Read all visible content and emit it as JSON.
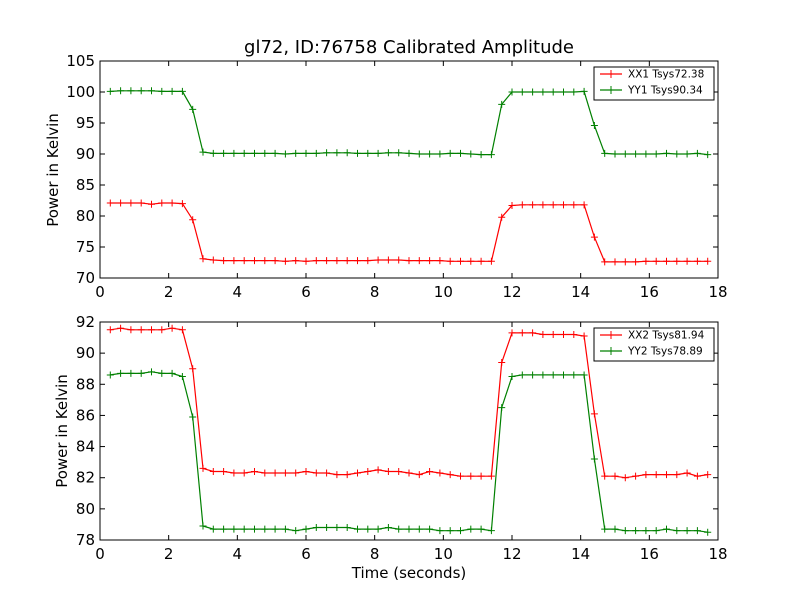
{
  "chart_data": [
    {
      "type": "line",
      "title": "gl72, ID:76758 Calibrated Amplitude",
      "xlabel": "",
      "ylabel": "Power in Kelvin",
      "xlim": [
        0,
        18
      ],
      "ylim": [
        70,
        105
      ],
      "xticks": [
        "0",
        "2",
        "4",
        "6",
        "8",
        "10",
        "12",
        "14",
        "16",
        "18"
      ],
      "yticks": [
        "70",
        "75",
        "80",
        "85",
        "90",
        "95",
        "100",
        "105"
      ],
      "grid": false,
      "legend_position": "top-right",
      "series": [
        {
          "name": "XX1 Tsys72.38",
          "color": "#ff0000",
          "x": [
            0.3,
            0.6,
            0.9,
            1.2,
            1.5,
            1.8,
            2.1,
            2.4,
            2.7,
            3.0,
            3.3,
            3.6,
            3.9,
            4.2,
            4.5,
            4.8,
            5.1,
            5.4,
            5.7,
            6.0,
            6.3,
            6.6,
            6.9,
            7.2,
            7.5,
            7.8,
            8.1,
            8.4,
            8.7,
            9.0,
            9.3,
            9.6,
            9.9,
            10.2,
            10.5,
            10.8,
            11.1,
            11.4,
            11.7,
            12.0,
            12.3,
            12.6,
            12.9,
            13.2,
            13.5,
            13.8,
            14.1,
            14.4,
            14.7,
            15.0,
            15.3,
            15.6,
            15.9,
            16.2,
            16.5,
            16.8,
            17.1,
            17.4,
            17.7
          ],
          "values": [
            82.1,
            82.1,
            82.1,
            82.1,
            81.9,
            82.1,
            82.1,
            82.0,
            79.4,
            73.1,
            72.9,
            72.8,
            72.8,
            72.8,
            72.8,
            72.8,
            72.8,
            72.7,
            72.8,
            72.7,
            72.8,
            72.8,
            72.8,
            72.8,
            72.8,
            72.8,
            72.9,
            72.9,
            72.9,
            72.8,
            72.8,
            72.8,
            72.8,
            72.7,
            72.7,
            72.7,
            72.7,
            72.7,
            79.8,
            81.7,
            81.8,
            81.8,
            81.8,
            81.8,
            81.8,
            81.8,
            81.8,
            76.6,
            72.6,
            72.6,
            72.6,
            72.6,
            72.7,
            72.7,
            72.7,
            72.7,
            72.7,
            72.7,
            72.7
          ]
        },
        {
          "name": "YY1 Tsys90.34",
          "color": "#008000",
          "x": [
            0.3,
            0.6,
            0.9,
            1.2,
            1.5,
            1.8,
            2.1,
            2.4,
            2.7,
            3.0,
            3.3,
            3.6,
            3.9,
            4.2,
            4.5,
            4.8,
            5.1,
            5.4,
            5.7,
            6.0,
            6.3,
            6.6,
            6.9,
            7.2,
            7.5,
            7.8,
            8.1,
            8.4,
            8.7,
            9.0,
            9.3,
            9.6,
            9.9,
            10.2,
            10.5,
            10.8,
            11.1,
            11.4,
            11.7,
            12.0,
            12.3,
            12.6,
            12.9,
            13.2,
            13.5,
            13.8,
            14.1,
            14.4,
            14.7,
            15.0,
            15.3,
            15.6,
            15.9,
            16.2,
            16.5,
            16.8,
            17.1,
            17.4,
            17.7
          ],
          "values": [
            100.1,
            100.2,
            100.2,
            100.2,
            100.2,
            100.1,
            100.1,
            100.1,
            97.2,
            90.3,
            90.1,
            90.1,
            90.1,
            90.1,
            90.1,
            90.1,
            90.1,
            90.0,
            90.1,
            90.1,
            90.1,
            90.2,
            90.2,
            90.2,
            90.1,
            90.1,
            90.1,
            90.2,
            90.2,
            90.1,
            90.0,
            90.0,
            90.0,
            90.1,
            90.1,
            90.0,
            89.9,
            89.9,
            98.0,
            100.0,
            100.0,
            100.0,
            100.0,
            100.0,
            100.0,
            100.0,
            100.1,
            94.6,
            90.1,
            90.0,
            90.0,
            90.0,
            90.0,
            90.0,
            90.1,
            90.0,
            90.0,
            90.1,
            89.9
          ]
        }
      ]
    },
    {
      "type": "line",
      "title": "",
      "xlabel": "Time (seconds)",
      "ylabel": "Power in Kelvin",
      "xlim": [
        0,
        18
      ],
      "ylim": [
        78,
        92
      ],
      "xticks": [
        "0",
        "2",
        "4",
        "6",
        "8",
        "10",
        "12",
        "14",
        "16",
        "18"
      ],
      "yticks": [
        "78",
        "80",
        "82",
        "84",
        "86",
        "88",
        "90",
        "92"
      ],
      "grid": false,
      "legend_position": "top-right",
      "series": [
        {
          "name": "XX2 Tsys81.94",
          "color": "#ff0000",
          "x": [
            0.3,
            0.6,
            0.9,
            1.2,
            1.5,
            1.8,
            2.1,
            2.4,
            2.7,
            3.0,
            3.3,
            3.6,
            3.9,
            4.2,
            4.5,
            4.8,
            5.1,
            5.4,
            5.7,
            6.0,
            6.3,
            6.6,
            6.9,
            7.2,
            7.5,
            7.8,
            8.1,
            8.4,
            8.7,
            9.0,
            9.3,
            9.6,
            9.9,
            10.2,
            10.5,
            10.8,
            11.1,
            11.4,
            11.7,
            12.0,
            12.3,
            12.6,
            12.9,
            13.2,
            13.5,
            13.8,
            14.1,
            14.4,
            14.7,
            15.0,
            15.3,
            15.6,
            15.9,
            16.2,
            16.5,
            16.8,
            17.1,
            17.4,
            17.7
          ],
          "values": [
            91.5,
            91.6,
            91.5,
            91.5,
            91.5,
            91.5,
            91.6,
            91.5,
            89.0,
            82.6,
            82.4,
            82.4,
            82.3,
            82.3,
            82.4,
            82.3,
            82.3,
            82.3,
            82.3,
            82.4,
            82.3,
            82.3,
            82.2,
            82.2,
            82.3,
            82.4,
            82.5,
            82.4,
            82.4,
            82.3,
            82.2,
            82.4,
            82.3,
            82.2,
            82.1,
            82.1,
            82.1,
            82.1,
            89.4,
            91.3,
            91.3,
            91.3,
            91.2,
            91.2,
            91.2,
            91.2,
            91.1,
            86.1,
            82.1,
            82.1,
            82.0,
            82.1,
            82.2,
            82.2,
            82.2,
            82.2,
            82.3,
            82.1,
            82.2
          ]
        },
        {
          "name": "YY2 Tsys78.89",
          "color": "#008000",
          "x": [
            0.3,
            0.6,
            0.9,
            1.2,
            1.5,
            1.8,
            2.1,
            2.4,
            2.7,
            3.0,
            3.3,
            3.6,
            3.9,
            4.2,
            4.5,
            4.8,
            5.1,
            5.4,
            5.7,
            6.0,
            6.3,
            6.6,
            6.9,
            7.2,
            7.5,
            7.8,
            8.1,
            8.4,
            8.7,
            9.0,
            9.3,
            9.6,
            9.9,
            10.2,
            10.5,
            10.8,
            11.1,
            11.4,
            11.7,
            12.0,
            12.3,
            12.6,
            12.9,
            13.2,
            13.5,
            13.8,
            14.1,
            14.4,
            14.7,
            15.0,
            15.3,
            15.6,
            15.9,
            16.2,
            16.5,
            16.8,
            17.1,
            17.4,
            17.7
          ],
          "values": [
            88.6,
            88.7,
            88.7,
            88.7,
            88.8,
            88.7,
            88.7,
            88.5,
            85.9,
            78.9,
            78.7,
            78.7,
            78.7,
            78.7,
            78.7,
            78.7,
            78.7,
            78.7,
            78.6,
            78.7,
            78.8,
            78.8,
            78.8,
            78.8,
            78.7,
            78.7,
            78.7,
            78.8,
            78.7,
            78.7,
            78.7,
            78.7,
            78.6,
            78.6,
            78.6,
            78.7,
            78.7,
            78.6,
            86.5,
            88.5,
            88.6,
            88.6,
            88.6,
            88.6,
            88.6,
            88.6,
            88.6,
            83.2,
            78.7,
            78.7,
            78.6,
            78.6,
            78.6,
            78.6,
            78.7,
            78.6,
            78.6,
            78.6,
            78.5
          ]
        }
      ]
    }
  ]
}
